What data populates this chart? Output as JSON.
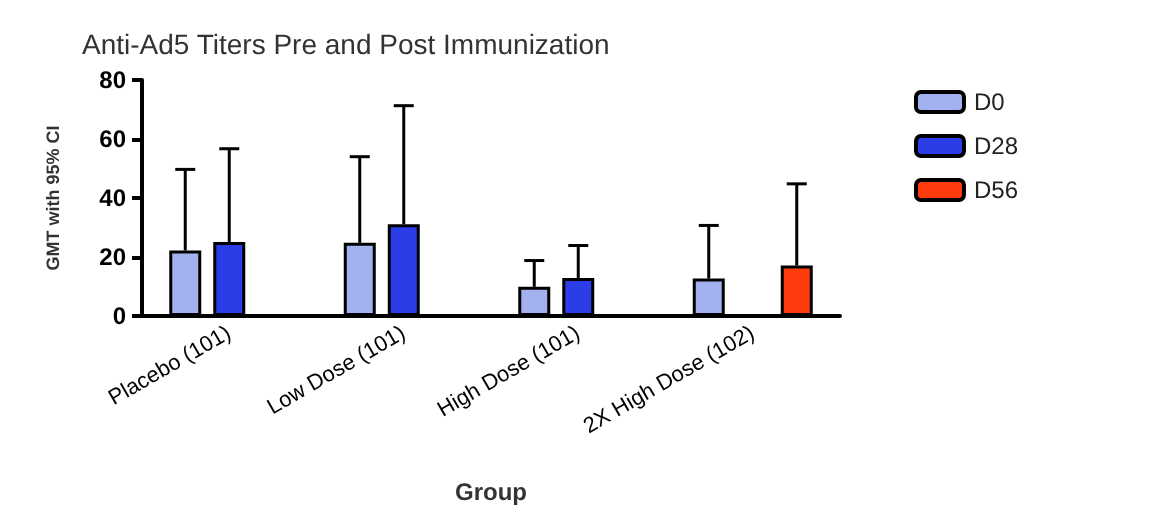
{
  "chart_data": {
    "type": "bar",
    "title": "Anti-Ad5 Titers Pre and Post Immunization",
    "xlabel": "Group",
    "ylabel": "GMT with 95% CI",
    "categories": [
      "Placebo (101)",
      "Low Dose (101)",
      "High Dose (101)",
      "2X High Dose (102)"
    ],
    "series": [
      {
        "name": "D0",
        "color": "#a3b1ef",
        "values": [
          22.2,
          24.8,
          9.9,
          12.7
        ],
        "errors": [
          [
            22.2,
            49.7
          ],
          [
            24.8,
            54
          ],
          [
            9.9,
            18.8
          ],
          [
            12.7,
            30.7
          ]
        ]
      },
      {
        "name": "D28",
        "color": "#2a3de6",
        "values": [
          25.1,
          31.1,
          12.9,
          null
        ],
        "errors": [
          [
            25.1,
            56.7
          ],
          [
            31.1,
            71.3
          ],
          [
            12.9,
            23.9
          ],
          null
        ]
      },
      {
        "name": "D56",
        "color": "#ff3c0e",
        "values": [
          null,
          null,
          null,
          17.1
        ],
        "errors": [
          null,
          null,
          null,
          [
            17.1,
            44.8
          ]
        ]
      }
    ],
    "ylim": [
      0,
      80
    ],
    "yticks": [
      0,
      20,
      40,
      60,
      80
    ],
    "grid": false,
    "legend": "top right"
  }
}
